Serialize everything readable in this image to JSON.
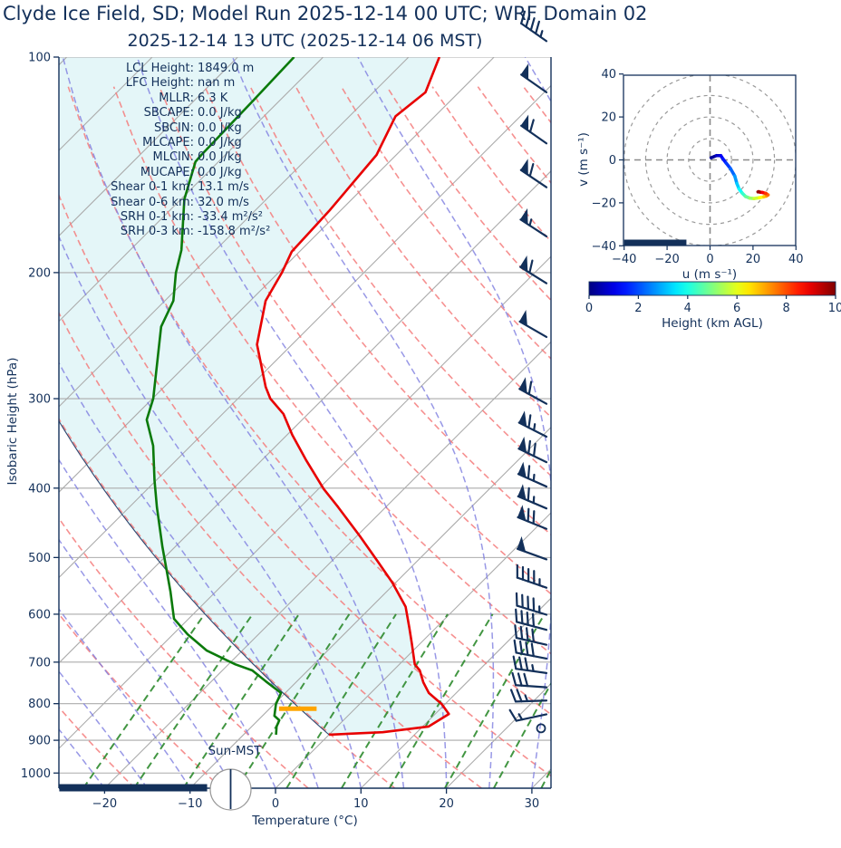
{
  "title": "Clyde Ice Field, SD; Model Run 2025-12-14 00 UTC; WRF Domain 02",
  "subtitle": "2025-12-14 13 UTC  (2025-12-14 06 MST)",
  "colors": {
    "ink": "#13305a",
    "temperature_curve": "#e80000",
    "dewpoint_curve": "#0b7a0b",
    "parcel_line": "#2c4770",
    "lcl_marker": "#ffa500",
    "isotherm": "#ababab",
    "gridline": "#ababab",
    "dry_adiabat": "#f47c7c",
    "moist_adiabat": "#7e7ee0",
    "mixing_ratio": "#2e8b2e",
    "shade_fill": "#e4f6f8",
    "barb": "#13305a",
    "ring": "#9a9a9a"
  },
  "skewt": {
    "ylabel": "Isobaric Height (hPa)",
    "xlabel": "Temperature (°C)",
    "sun_label": "Sun-MST",
    "pressure_ticks": [
      {
        "v": 100,
        "t": "100"
      },
      {
        "v": 200,
        "t": "200"
      },
      {
        "v": 300,
        "t": "300"
      },
      {
        "v": 400,
        "t": "400"
      },
      {
        "v": 500,
        "t": "500"
      },
      {
        "v": 600,
        "t": "600"
      },
      {
        "v": 700,
        "t": "700"
      },
      {
        "v": 800,
        "t": "800"
      },
      {
        "v": 900,
        "t": "900"
      },
      {
        "v": 1000,
        "t": "1000"
      }
    ],
    "temp_ticks": [
      {
        "v": -20,
        "t": "−20"
      },
      {
        "v": -10,
        "t": "−10"
      },
      {
        "v": 0,
        "t": "0"
      },
      {
        "v": 10,
        "t": "10"
      },
      {
        "v": 20,
        "t": "20"
      },
      {
        "v": 30,
        "t": "30"
      }
    ],
    "stats": [
      {
        "label": "LCL Height:",
        "value": "1849.0 m"
      },
      {
        "label": "LFC Height:",
        "value": "nan m"
      },
      {
        "label": "MLLR:",
        "value": "6.3 K"
      },
      {
        "label": "SBCAPE:",
        "value": "0.0 J/kg"
      },
      {
        "label": "SBCIN:",
        "value": "0.0 J/kg"
      },
      {
        "label": "MLCAPE:",
        "value": "0.0 J/kg"
      },
      {
        "label": "MLCIN:",
        "value": "0.0 J/kg"
      },
      {
        "label": "MUCAPE:",
        "value": "0.0 J/kg"
      },
      {
        "label": "Shear 0-1 km:",
        "value": "13.1 m/s"
      },
      {
        "label": "Shear 0-6 km:",
        "value": "32.0 m/s"
      },
      {
        "label": "SRH 0-1 km:",
        "value": "-33.4 m²/s²"
      },
      {
        "label": "SRH 0-3 km:",
        "value": "-158.8 m²/s²"
      }
    ]
  },
  "chart_data": {
    "type": "skewt-sounding",
    "pressure_range_hPa": [
      100,
      1050
    ],
    "temp_axis_range_C": [
      -25.3,
      32.2
    ],
    "skew_deg": 45,
    "temperature_profile_p_T": [
      [
        100,
        -66.4
      ],
      [
        112,
        -63.9
      ],
      [
        121,
        -64.6
      ],
      [
        137,
        -62.3
      ],
      [
        164,
        -61.3
      ],
      [
        187,
        -60.9
      ],
      [
        200,
        -59.6
      ],
      [
        219,
        -58.2
      ],
      [
        252,
        -54.1
      ],
      [
        289,
        -48.1
      ],
      [
        300,
        -46.2
      ],
      [
        315,
        -42.9
      ],
      [
        337,
        -39.4
      ],
      [
        365,
        -34.9
      ],
      [
        401,
        -29.4
      ],
      [
        425,
        -25.6
      ],
      [
        467,
        -19.6
      ],
      [
        507,
        -14.5
      ],
      [
        542,
        -10.4
      ],
      [
        586,
        -6.0
      ],
      [
        627,
        -3.1
      ],
      [
        659,
        -1.0
      ],
      [
        705,
        1.8
      ],
      [
        719,
        3.1
      ],
      [
        747,
        4.9
      ],
      [
        773,
        6.8
      ],
      [
        801,
        9.6
      ],
      [
        827,
        11.6
      ],
      [
        861,
        10.7
      ],
      [
        877,
        6.0
      ],
      [
        884,
        0.0
      ]
    ],
    "dewpoint_profile_p_Td": [
      [
        100,
        -83.4
      ],
      [
        115,
        -83.1
      ],
      [
        137,
        -82.8
      ],
      [
        140,
        -82.7
      ],
      [
        158,
        -79.6
      ],
      [
        186,
        -74.0
      ],
      [
        200,
        -72.0
      ],
      [
        219,
        -69.0
      ],
      [
        238,
        -67.4
      ],
      [
        300,
        -59.9
      ],
      [
        321,
        -58.2
      ],
      [
        349,
        -54.4
      ],
      [
        390,
        -50.2
      ],
      [
        425,
        -46.8
      ],
      [
        483,
        -41.5
      ],
      [
        558,
        -35.3
      ],
      [
        609,
        -31.7
      ],
      [
        640,
        -28.3
      ],
      [
        674,
        -24.2
      ],
      [
        705,
        -19.2
      ],
      [
        719,
        -16.5
      ],
      [
        744,
        -13.7
      ],
      [
        773,
        -10.5
      ],
      [
        801,
        -9.8
      ],
      [
        832,
        -8.6
      ],
      [
        844,
        -7.5
      ],
      [
        861,
        -7.1
      ],
      [
        884,
        -6.2
      ]
    ],
    "parcel": {
      "surface_p_hPa": 884,
      "surface_T_C": 0.0
    },
    "lcl_marker": {
      "p_hPa": 813,
      "T_center_C": -6.7,
      "half_width_C": 2.2
    },
    "surface_bar": {
      "t_start_C": -25.3,
      "t_end_C": -8.0
    },
    "wind_barbs_p_kt_dir": [
      [
        95,
        45,
        305
      ],
      [
        112,
        50,
        305
      ],
      [
        132,
        60,
        305
      ],
      [
        152,
        60,
        304
      ],
      [
        178,
        55,
        303
      ],
      [
        207,
        60,
        302
      ],
      [
        246,
        50,
        300
      ],
      [
        305,
        60,
        299
      ],
      [
        339,
        65,
        297
      ],
      [
        368,
        70,
        296
      ],
      [
        398,
        65,
        294
      ],
      [
        427,
        65,
        293
      ],
      [
        456,
        70,
        292
      ],
      [
        503,
        50,
        290
      ],
      [
        551,
        45,
        289
      ],
      [
        601,
        45,
        287
      ],
      [
        631,
        40,
        285
      ],
      [
        662,
        40,
        283
      ],
      [
        692,
        40,
        281
      ],
      [
        725,
        35,
        278
      ],
      [
        759,
        30,
        274
      ],
      [
        792,
        25,
        268
      ],
      [
        828,
        15,
        258
      ],
      [
        866,
        0,
        0
      ]
    ],
    "background": {
      "isotherms_C": {
        "from": -110,
        "to": 40,
        "step": 10
      },
      "dry_adiabats_theta_C": {
        "from": -40,
        "to": 160,
        "step": 10
      },
      "moist_adiabat_starts_C": {
        "from": -40,
        "to": 40,
        "step": 5
      },
      "mixing_ratios_g_kg": [
        0.6,
        1,
        1.6,
        2.6,
        4,
        6.3,
        9.2,
        14,
        20,
        28
      ],
      "mixing_ratio_top_hPa": 600
    },
    "hodograph": {
      "xlabel": "u (m s⁻¹)",
      "ylabel": "v (m s⁻¹)",
      "axis_range": [
        -40,
        40
      ],
      "rings_m_s": [
        10,
        20,
        30,
        40
      ],
      "u_ticks": [
        {
          "v": -40,
          "t": "−40"
        },
        {
          "v": -20,
          "t": "−20"
        },
        {
          "v": 0,
          "t": "0"
        },
        {
          "v": 20,
          "t": "20"
        },
        {
          "v": 40,
          "t": "40"
        }
      ],
      "v_ticks": [
        {
          "v": 40,
          "t": "40"
        },
        {
          "v": 20,
          "t": "20"
        },
        {
          "v": 0,
          "t": "0"
        },
        {
          "v": -20,
          "t": "−20"
        },
        {
          "v": -40,
          "t": "−40"
        }
      ],
      "bar_u_extent": [
        -40,
        -11
      ],
      "trace_h_u_v": [
        [
          0,
          0.5,
          1
        ],
        [
          0.5,
          3,
          2
        ],
        [
          1,
          5,
          2
        ],
        [
          1.3,
          6,
          0.5
        ],
        [
          1.6,
          7.5,
          -1.5
        ],
        [
          2,
          9.5,
          -4
        ],
        [
          2.5,
          11.5,
          -7.5
        ],
        [
          3,
          12.5,
          -11
        ],
        [
          3.5,
          13.5,
          -13.5
        ],
        [
          4,
          15,
          -15.5
        ],
        [
          4.5,
          16.5,
          -17
        ],
        [
          5,
          18.5,
          -17.8
        ],
        [
          5.5,
          20.5,
          -18
        ],
        [
          6,
          23,
          -17.6
        ],
        [
          6.5,
          25,
          -17.2
        ],
        [
          7,
          26.3,
          -16.8
        ],
        [
          7.5,
          27,
          -16.3
        ],
        [
          8,
          26,
          -15.6
        ],
        [
          8.5,
          24.5,
          -15.2
        ],
        [
          9,
          23.2,
          -15.0
        ],
        [
          9.5,
          22.6,
          -14.8
        ],
        [
          10,
          22.3,
          -14.9
        ]
      ]
    },
    "colorbar": {
      "label": "Height (km AGL)",
      "colormap": "jet",
      "min": 0,
      "max": 10,
      "ticks": [
        {
          "v": 0,
          "t": "0"
        },
        {
          "v": 2,
          "t": "2"
        },
        {
          "v": 4,
          "t": "4"
        },
        {
          "v": 6,
          "t": "6"
        },
        {
          "v": 8,
          "t": "8"
        },
        {
          "v": 10,
          "t": "10"
        }
      ]
    }
  }
}
